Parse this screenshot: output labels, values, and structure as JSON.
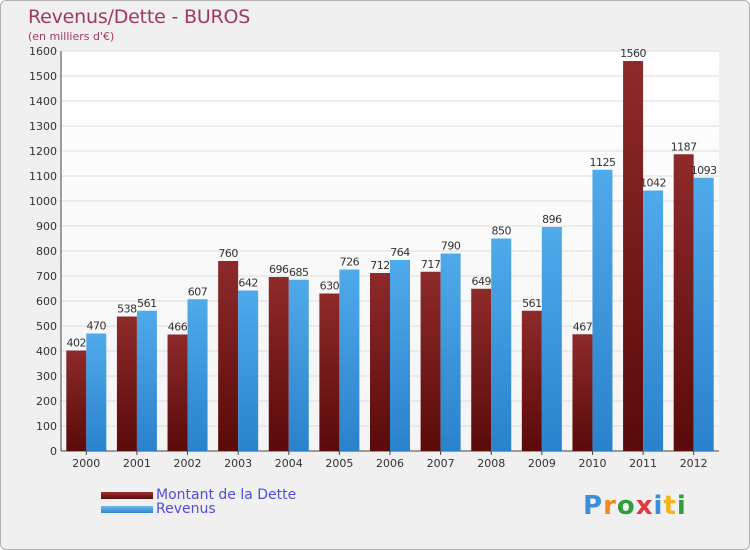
{
  "chart_data": {
    "type": "bar",
    "title": "Revenus/Dette - BUROS",
    "subtitle": "(en milliers d'€)",
    "categories": [
      "2000",
      "2001",
      "2002",
      "2003",
      "2004",
      "2005",
      "2006",
      "2007",
      "2008",
      "2009",
      "2010",
      "2011",
      "2012"
    ],
    "series": [
      {
        "name": "Montant de la Dette",
        "color": "#7a1a1a",
        "values": [
          402,
          538,
          466,
          760,
          696,
          630,
          712,
          717,
          649,
          561,
          467,
          1560,
          1187
        ]
      },
      {
        "name": "Revenus",
        "color": "#3f9be0",
        "values": [
          470,
          561,
          607,
          642,
          685,
          726,
          764,
          790,
          850,
          896,
          1125,
          1042,
          1093
        ]
      }
    ],
    "ylim": [
      0,
      1600
    ],
    "yticks": [
      0,
      100,
      200,
      300,
      400,
      500,
      600,
      700,
      800,
      900,
      1000,
      1100,
      1200,
      1300,
      1400,
      1500,
      1600
    ],
    "grid": true,
    "xlabel": "",
    "ylabel": ""
  },
  "legend": {
    "debt_label": "Montant de la Dette",
    "revenue_label": "Revenus"
  },
  "logo": {
    "letters": [
      "P",
      "r",
      "o",
      "x",
      "i",
      "t",
      "i"
    ],
    "colors": [
      "#3a8fd8",
      "#f08a1c",
      "#2e9e3e",
      "#e03a3a",
      "#3a8fd8",
      "#f0b41c",
      "#2e9e3e"
    ]
  }
}
